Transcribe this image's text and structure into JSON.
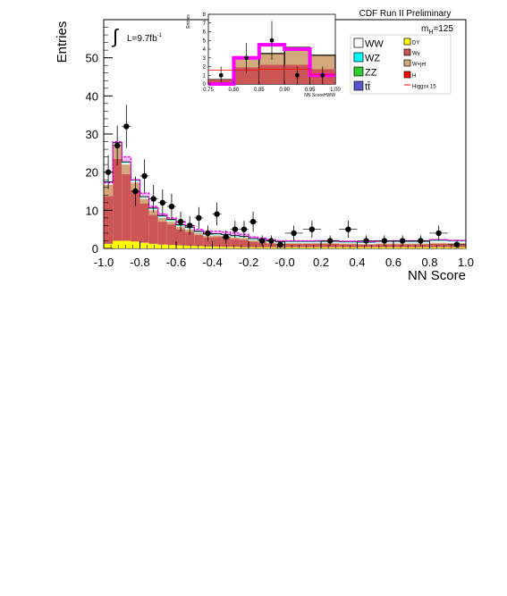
{
  "chart_data": [
    {
      "type": "bar",
      "title": "CDF Run II Preliminary",
      "xlabel": "NN Score",
      "ylabel": "Entries",
      "xlim": [
        -1.0,
        1.0
      ],
      "ylim": [
        0,
        60
      ],
      "x_ticks": [
        "-1.0",
        "-0.8",
        "-0.6",
        "-0.4",
        "-0.2",
        "-0.0",
        "0.2",
        "0.4",
        "0.6",
        "0.8",
        "1.0"
      ],
      "y_ticks": [
        "0",
        "10",
        "20",
        "30",
        "40",
        "50"
      ],
      "lumi_prefix": "L=9.7fb",
      "lumi_sup": "-1",
      "mass_label": "m",
      "mass_sub": "H",
      "mass_value": "=125",
      "bins": [
        -1.0,
        -0.95,
        -0.9,
        -0.85,
        -0.8,
        -0.75,
        -0.7,
        -0.65,
        -0.6,
        -0.55,
        -0.5,
        -0.45,
        -0.4,
        -0.35,
        -0.3,
        -0.25,
        -0.2,
        -0.15,
        -0.1,
        -0.05,
        0.0,
        0.1,
        0.2,
        0.3,
        0.4,
        0.5,
        0.6,
        0.7,
        0.8,
        0.9,
        1.0
      ],
      "stack": [
        {
          "name": "DY",
          "color": "#ffff00",
          "values": [
            1.2,
            2.0,
            2.0,
            1.8,
            1.5,
            1.2,
            1.0,
            0.9,
            0.8,
            0.7,
            0.6,
            0.5,
            0.5,
            0.4,
            0.4,
            0.3,
            0.3,
            0.3,
            0.3,
            0.2,
            0.3,
            0.3,
            0.3,
            0.3,
            0.3,
            0.3,
            0.3,
            0.3,
            0.3,
            0.3
          ]
        },
        {
          "name": "Wγ",
          "color": "#cc5555",
          "values": [
            12.5,
            21.5,
            17.5,
            13.5,
            10.3,
            7.6,
            6.0,
            5.4,
            4.2,
            3.7,
            2.9,
            2.4,
            2.5,
            2.4,
            2.1,
            2.0,
            1.5,
            1.3,
            1.0,
            0.9,
            0.9,
            0.9,
            0.9,
            0.8,
            0.7,
            0.8,
            0.8,
            0.8,
            0.9,
            0.8
          ]
        },
        {
          "name": "W+jet",
          "color": "#d2a87c",
          "values": [
            3.0,
            3.5,
            2.5,
            2.0,
            1.2,
            1.2,
            1.0,
            0.7,
            0.6,
            0.6,
            0.5,
            0.4,
            0.4,
            0.4,
            0.4,
            0.4,
            0.3,
            0.3,
            0.2,
            0.2,
            0.2,
            0.2,
            0.2,
            0.2,
            0.2,
            0.2,
            0.2,
            0.2,
            0.3,
            0.3
          ]
        },
        {
          "name": "WW",
          "color": "#ffffff",
          "values": [
            0.5,
            0.5,
            0.4,
            0.4,
            0.3,
            0.3,
            0.3,
            0.3,
            0.3,
            0.3,
            0.2,
            0.2,
            0.2,
            0.2,
            0.2,
            0.2,
            0.2,
            0.2,
            0.2,
            0.2,
            0.2,
            0.2,
            0.2,
            0.2,
            0.2,
            0.3,
            0.3,
            0.3,
            0.4,
            0.4
          ]
        },
        {
          "name": "WZ",
          "color": "#00ffff",
          "values": [
            0.1,
            0.1,
            0.1,
            0.1,
            0.1,
            0.1,
            0.1,
            0.1,
            0.1,
            0.1,
            0.1,
            0.1,
            0.1,
            0.1,
            0.1,
            0.1,
            0.1,
            0.1,
            0.1,
            0.1,
            0.1,
            0.1,
            0.1,
            0.1,
            0.1,
            0.1,
            0.1,
            0.1,
            0.1,
            0.1
          ]
        },
        {
          "name": "ZZ",
          "color": "#33cc33",
          "values": [
            0.1,
            0.1,
            0.1,
            0.1,
            0.1,
            0.1,
            0.1,
            0.1,
            0.1,
            0.1,
            0.1,
            0.1,
            0.1,
            0.1,
            0.1,
            0.1,
            0.1,
            0.1,
            0.1,
            0.1,
            0.1,
            0.1,
            0.1,
            0.1,
            0.1,
            0.1,
            0.1,
            0.1,
            0.1,
            0.1
          ]
        },
        {
          "name": "tt̄",
          "color": "#5555cc",
          "values": [
            0.1,
            0.1,
            0.1,
            0.1,
            0.1,
            0.1,
            0.1,
            0.1,
            0.1,
            0.1,
            0.1,
            0.1,
            0.1,
            0.1,
            0.1,
            0.1,
            0.1,
            0.1,
            0.1,
            0.1,
            0.1,
            0.1,
            0.1,
            0.1,
            0.1,
            0.1,
            0.1,
            0.1,
            0.1,
            0.1
          ]
        },
        {
          "name": "H",
          "color": "#ff0000",
          "values": [
            0,
            0,
            0,
            0,
            0,
            0,
            0,
            0,
            0,
            0,
            0,
            0,
            0,
            0,
            0,
            0,
            0,
            0,
            0,
            0,
            0,
            0,
            0,
            0,
            0,
            0,
            0,
            0,
            0,
            0
          ]
        }
      ],
      "higgs_x15": [
        17.2,
        28.0,
        24.0,
        18.0,
        14.5,
        11.0,
        9.0,
        8.0,
        7.0,
        6.0,
        5.0,
        4.5,
        4.5,
        4.3,
        4.0,
        3.7,
        3.0,
        2.7,
        2.3,
        2.0,
        2.0,
        2.0,
        2.0,
        1.9,
        1.8,
        1.9,
        2.0,
        2.0,
        2.3,
        2.1
      ],
      "higgs_label": "Higgsx 15",
      "legend_order": [
        "WW",
        "DY",
        "WZ",
        "Wγ",
        "ZZ",
        "W+jet",
        "tt̄",
        "H",
        "Higgsx 15"
      ],
      "data_points": {
        "name": "Data",
        "x": [
          -0.975,
          -0.925,
          -0.875,
          -0.825,
          -0.775,
          -0.725,
          -0.675,
          -0.625,
          -0.575,
          -0.525,
          -0.475,
          -0.425,
          -0.375,
          -0.325,
          -0.275,
          -0.225,
          -0.175,
          -0.125,
          -0.075,
          -0.025,
          0.05,
          0.15,
          0.25,
          0.35,
          0.45,
          0.55,
          0.65,
          0.75,
          0.85,
          0.95
        ],
        "y": [
          20,
          27,
          32,
          15,
          19,
          13,
          12,
          11,
          7,
          6,
          8,
          4,
          9,
          3,
          5,
          5,
          7,
          2,
          2,
          1,
          4,
          5,
          2,
          5,
          2,
          2,
          2,
          2,
          4,
          1
        ]
      },
      "inset": {
        "xlabel": "NN ScoreHWW",
        "ylabel": "Entries",
        "xlim": [
          0.75,
          1.0
        ],
        "ylim": [
          0,
          8
        ],
        "x_ticks": [
          "0.75",
          "0.80",
          "0.85",
          "0.90",
          "0.95",
          "1.00"
        ],
        "y_ticks": [
          "0",
          "1",
          "2",
          "3",
          "4",
          "5",
          "6",
          "7",
          "8"
        ],
        "bins": [
          0.75,
          0.8,
          0.85,
          0.9,
          0.95,
          1.0
        ],
        "stack_totals": [
          0.5,
          2.9,
          3.5,
          4.2,
          3.3
        ],
        "wgamma_totals": [
          0.5,
          1.9,
          2.2,
          2.2,
          1.7
        ],
        "higgs_x15": [
          0.0,
          3.0,
          4.5,
          4.0,
          1.0
        ],
        "higgs_line": [
          1.6,
          1.6,
          1.7,
          1.7,
          1.1
        ],
        "data_x": [
          0.775,
          0.825,
          0.875,
          0.925,
          0.975
        ],
        "data_y": [
          1,
          3,
          5,
          1,
          1
        ]
      }
    }
  ]
}
